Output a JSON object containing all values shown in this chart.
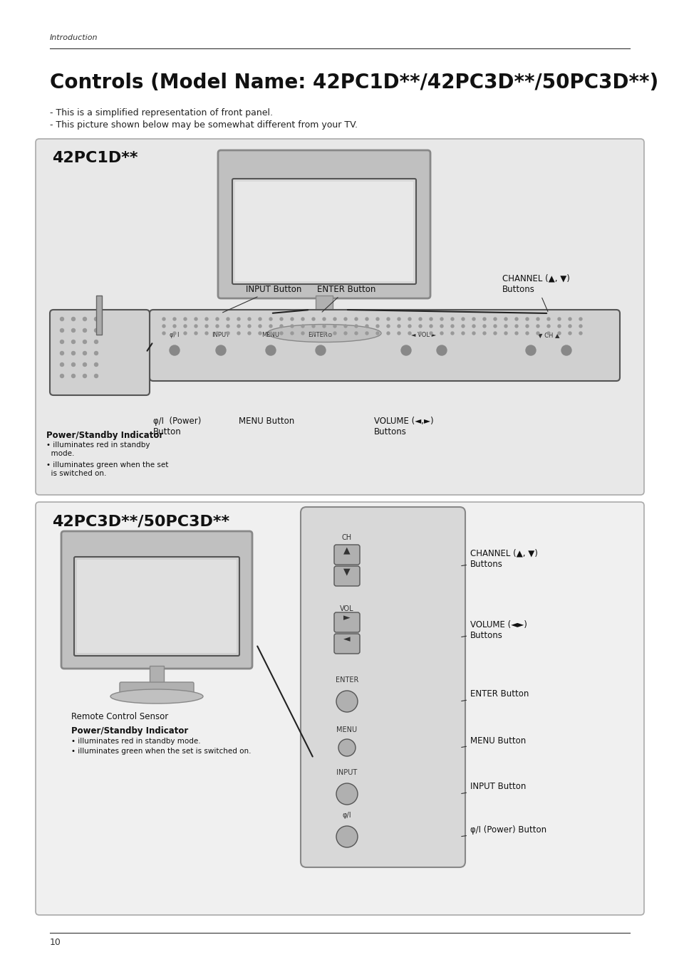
{
  "bg_color": "#ffffff",
  "page_bg": "#ffffff",
  "header_text": "Introduction",
  "title": "Controls (Model Name: 42PC1D**/42PC3D**/50PC3D**)",
  "subtitle_lines": [
    "- This is a simplified representation of front panel.",
    "- This picture shown below may be somewhat different from your TV."
  ],
  "panel1_label": "42PC1D**",
  "panel1_bg": "#e8e8e8",
  "panel2_label": "42PC3D**/50PC3D**",
  "panel2_bg": "#f0f0f0",
  "footer_text": "10",
  "panel1_power_indicator_label": "Power/Standby Indicator",
  "panel1_power_indicator_bullets": [
    "• illuminates red in standby\n  mode.",
    "• illuminates green when the set\n  is switched on."
  ],
  "panel1_labels": {
    "input_button": "INPUT Button",
    "enter_button": "ENTER Button",
    "channel_buttons": "CHANNEL (▲, ▼)\nButtons",
    "power_button": "φ/I  (Power)\nButton",
    "menu_button": "MENU Button",
    "volume_buttons": "VOLUME (◄,►)\nButtons"
  },
  "panel2_labels": {
    "channel": "CHANNEL (▲, ▼)\nButtons",
    "volume": "VOLUME (◄►)\nButtons",
    "enter": "ENTER Button",
    "menu": "MENU Button",
    "input": "INPUT Button",
    "power": "φ/I (Power) Button"
  },
  "panel2_remote_label": "Remote Control Sensor",
  "panel2_power_label": "Power/Standby Indicator",
  "panel2_power_bullets": [
    "• illuminates red in standby mode.",
    "• illuminates green when the set is switched on."
  ]
}
